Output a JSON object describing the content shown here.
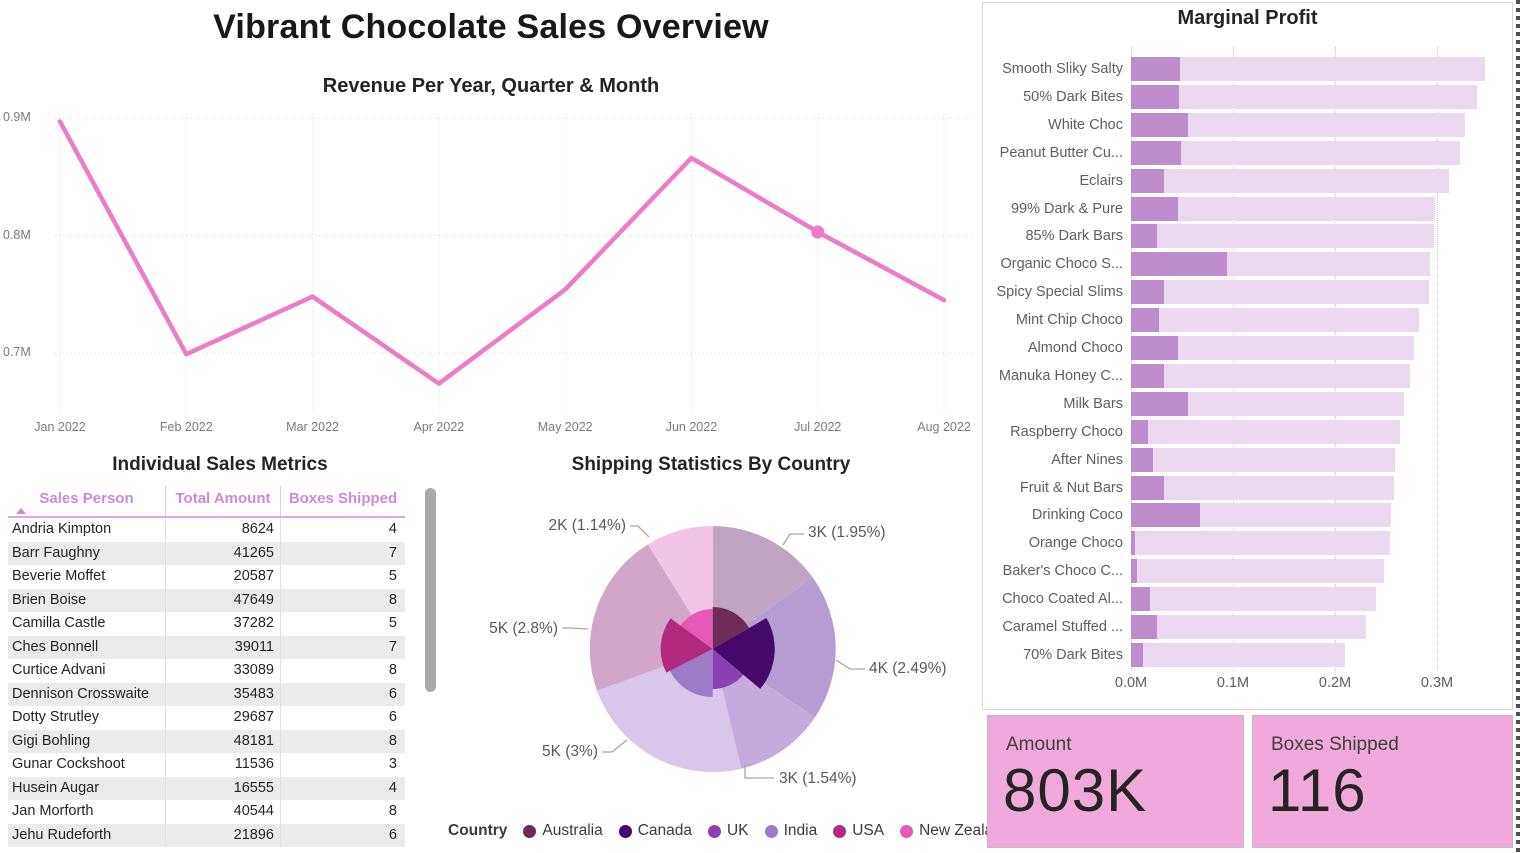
{
  "page_title": "Vibrant Chocolate Sales Overview",
  "kpi_cards": [
    {
      "label": "Amount",
      "value": "803K"
    },
    {
      "label": "Boxes Shipped",
      "value": "116"
    }
  ],
  "colors": {
    "line": "#EE7BC5",
    "bar_dark_segment": "#BD8DCB",
    "bar_light_segment": "#EAD9EF",
    "kpi_background": "#F1A9DC",
    "table_header_text": "#C98CD6",
    "zebra_row": "#EBEBEB"
  },
  "chart_data": [
    {
      "id": "revenue_trend",
      "type": "line",
      "title": "Revenue Per Year, Quarter & Month",
      "x": [
        "Jan 2022",
        "Feb 2022",
        "Mar 2022",
        "Apr 2022",
        "May 2022",
        "Jun 2022",
        "Jul 2022",
        "Aug 2022"
      ],
      "values_millions": [
        0.897,
        0.699,
        0.748,
        0.674,
        0.754,
        0.866,
        0.803,
        0.745
      ],
      "highlighted_point": {
        "x": "Jul 2022",
        "value_millions": 0.803
      },
      "yticks": [
        {
          "label": "0.9M",
          "value": 0.9
        },
        {
          "label": "0.8M",
          "value": 0.8
        },
        {
          "label": "0.7M",
          "value": 0.7
        }
      ],
      "ylim": [
        0.65,
        0.92
      ],
      "grid": true,
      "legend_position": "none"
    },
    {
      "id": "individual_sales",
      "type": "table",
      "title": "Individual Sales Metrics",
      "columns": [
        "Sales Person",
        "Total Amount",
        "Boxes Shipped"
      ],
      "sort": {
        "column": "Sales Person",
        "direction": "ascending"
      },
      "rows": [
        [
          "Andria Kimpton",
          8624,
          4
        ],
        [
          "Barr Faughny",
          41265,
          7
        ],
        [
          "Beverie Moffet",
          20587,
          5
        ],
        [
          "Brien Boise",
          47649,
          8
        ],
        [
          "Camilla Castle",
          37282,
          5
        ],
        [
          "Ches Bonnell",
          39011,
          7
        ],
        [
          "Curtice Advani",
          33089,
          8
        ],
        [
          "Dennison Crosswaite",
          35483,
          6
        ],
        [
          "Dotty Strutley",
          29687,
          6
        ],
        [
          "Gigi Bohling",
          48181,
          8
        ],
        [
          "Gunar Cockshoot",
          11536,
          3
        ],
        [
          "Husein Augar",
          16555,
          4
        ],
        [
          "Jan Morforth",
          40544,
          8
        ],
        [
          "Jehu Rudeforth",
          21896,
          6
        ]
      ]
    },
    {
      "id": "shipping_by_country",
      "type": "pie",
      "title": "Shipping Statistics By Country",
      "legend_title": "Country",
      "legend_position": "bottom",
      "slices": [
        {
          "country": "Australia",
          "label": "3K (1.95%)",
          "boxes": "3K",
          "pct": 1.95,
          "outer_color": "#C0A5C3",
          "inner_color": "#6E2B55",
          "inner_arc_deg": [
            0,
            60
          ],
          "inner_radius_px": 42
        },
        {
          "country": "Canada",
          "label": "4K (2.49%)",
          "boxes": "4K",
          "pct": 2.49,
          "outer_color": "#B59CD2",
          "inner_color": "#45086B",
          "inner_arc_deg": [
            60,
            130
          ],
          "inner_radius_px": 62
        },
        {
          "country": "UK",
          "label": "3K (1.54%)",
          "boxes": "3K",
          "pct": 1.54,
          "outer_color": "#C5ABDD",
          "inner_color": "#8C3FB0",
          "inner_arc_deg": [
            130,
            180
          ],
          "inner_radius_px": 40
        },
        {
          "country": "India",
          "label": "5K (3%)",
          "boxes": "5K",
          "pct": 3.0,
          "outer_color": "#D8C7E8",
          "inner_color": "#9C7CC7",
          "inner_arc_deg": [
            180,
            243
          ],
          "inner_radius_px": 48
        },
        {
          "country": "USA",
          "label": "5K (2.8%)",
          "boxes": "5K",
          "pct": 2.8,
          "outer_color": "#D2A6C9",
          "inner_color": "#B12A80",
          "inner_arc_deg": [
            243,
            306
          ],
          "inner_radius_px": 52
        },
        {
          "country": "New Zealand",
          "label": "2K (1.14%)",
          "boxes": "2K",
          "pct": 1.14,
          "outer_color": "#F2C4E5",
          "inner_color": "#E459B5",
          "inner_arc_deg": [
            306,
            360
          ],
          "inner_radius_px": 40
        }
      ]
    },
    {
      "id": "marginal_profit",
      "type": "bar",
      "title": "Marginal Profit",
      "orientation": "horizontal",
      "xticks": [
        "0.0M",
        "0.1M",
        "0.2M",
        "0.3M"
      ],
      "xlim_millions": [
        0,
        0.365
      ],
      "categories": [
        "Smooth Sliky Salty",
        "50% Dark Bites",
        "White Choc",
        "Peanut Butter Cu...",
        "Eclairs",
        "99% Dark & Pure",
        "85% Dark Bars",
        "Organic Choco S...",
        "Spicy Special Slims",
        "Mint Chip Choco",
        "Almond Choco",
        "Manuka Honey C...",
        "Milk Bars",
        "Raspberry Choco",
        "After Nines",
        "Fruit & Nut Bars",
        "Drinking Coco",
        "Orange Choco",
        "Baker's Choco C...",
        "Choco Coated Al...",
        "Caramel Stuffed ...",
        "70% Dark Bites"
      ],
      "series": [
        {
          "name": "highlight_segment_millions",
          "values": [
            0.048,
            0.047,
            0.056,
            0.049,
            0.032,
            0.046,
            0.025,
            0.094,
            0.032,
            0.027,
            0.046,
            0.032,
            0.056,
            0.017,
            0.022,
            0.032,
            0.068,
            0.004,
            0.006,
            0.019,
            0.025,
            0.012
          ]
        },
        {
          "name": "total_millions",
          "values": [
            0.347,
            0.339,
            0.327,
            0.323,
            0.312,
            0.298,
            0.297,
            0.293,
            0.292,
            0.282,
            0.277,
            0.274,
            0.268,
            0.264,
            0.259,
            0.258,
            0.255,
            0.254,
            0.248,
            0.24,
            0.23,
            0.21
          ]
        }
      ]
    }
  ]
}
